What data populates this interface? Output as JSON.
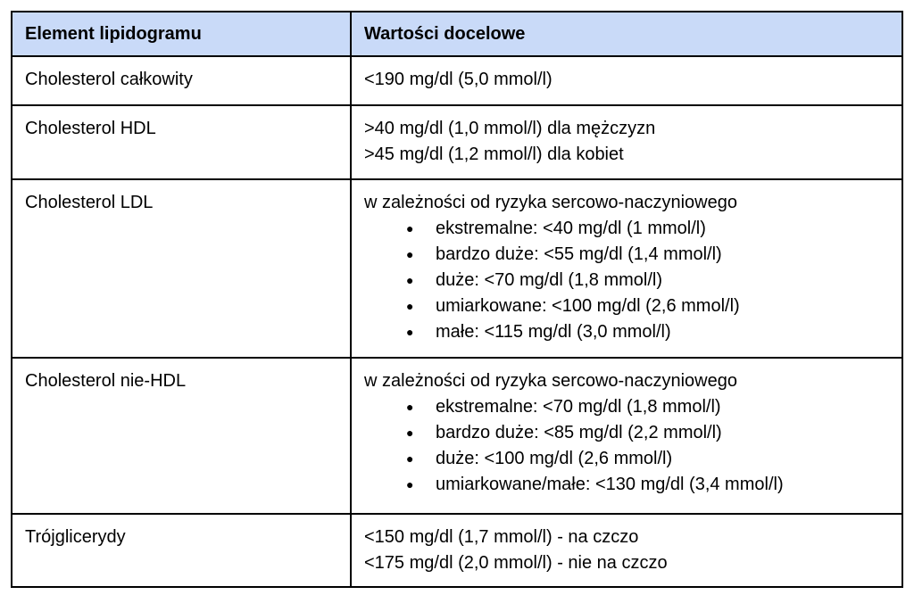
{
  "colors": {
    "header_background": "#c9daf8",
    "border": "#000000",
    "text": "#000000",
    "page_background": "#ffffff"
  },
  "table": {
    "columns": [
      "Element lipidogramu",
      "Wartości docelowe"
    ],
    "rows": [
      {
        "name": "Cholesterol całkowity",
        "lines": [
          "<190 mg/dl (5,0 mmol/l)"
        ]
      },
      {
        "name": "Cholesterol HDL",
        "lines": [
          ">40 mg/dl (1,0 mmol/l) dla mężczyzn",
          ">45 mg/dl (1,2 mmol/l) dla kobiet"
        ]
      },
      {
        "name": "Cholesterol LDL",
        "lines": [
          "w zależności od ryzyka sercowo-naczyniowego"
        ],
        "bullets": [
          "ekstremalne: <40 mg/dl (1 mmol/l)",
          "bardzo duże: <55 mg/dl (1,4 mmol/l)",
          "duże: <70 mg/dl (1,8 mmol/l)",
          "umiarkowane: <100 mg/dl (2,6 mmol/l)",
          "małe: <115 mg/dl (3,0 mmol/l)"
        ]
      },
      {
        "name": "Cholesterol nie-HDL",
        "lines": [
          "w zależności od ryzyka sercowo-naczyniowego"
        ],
        "bullets": [
          "ekstremalne: <70 mg/dl (1,8 mmol/l)",
          "bardzo duże: <85 mg/dl (2,2 mmol/l)",
          "duże: <100 mg/dl (2,6 mmol/l)",
          "umiarkowane/małe: <130 mg/dl (3,4 mmol/l)"
        ]
      },
      {
        "name": "Trójglicerydy",
        "lines": [
          "<150 mg/dl (1,7 mmol/l) - na czczo",
          "<175 mg/dl (2,0 mmol/l) - nie na czczo"
        ]
      }
    ],
    "bullet_glyph": "●"
  }
}
